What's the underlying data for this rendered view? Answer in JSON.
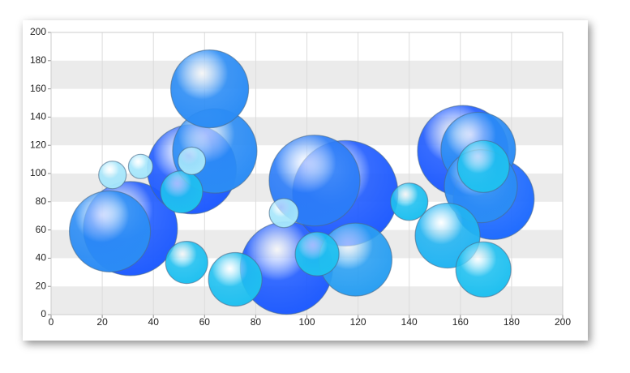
{
  "chart_data": {
    "type": "bubble",
    "xlim": [
      0,
      200
    ],
    "xticks": [
      0,
      20,
      40,
      60,
      80,
      100,
      120,
      140,
      160,
      180,
      200
    ],
    "ylim": [
      0,
      200
    ],
    "yticks": [
      0,
      20,
      40,
      60,
      80,
      100,
      120,
      140,
      160,
      180,
      200
    ],
    "grid": true,
    "series": [
      {
        "x": [
          31,
          23,
          55,
          64,
          62,
          92,
          115,
          103,
          119,
          161,
          173,
          167,
          168,
          155,
          169,
          169,
          51,
          53,
          72,
          104,
          140,
          24,
          35,
          55,
          91
        ],
        "values": [
          61,
          59,
          103,
          116,
          160,
          33,
          86,
          95,
          39,
          116,
          82,
          117,
          91,
          56,
          32,
          105,
          87,
          37,
          25,
          43,
          80,
          99,
          105,
          109,
          72
        ],
        "sizes": [
          58,
          50,
          55,
          52,
          48,
          57,
          65,
          56,
          45,
          56,
          50,
          46,
          45,
          40,
          34,
          32,
          26,
          26,
          33,
          27,
          23,
          17,
          15,
          17,
          18
        ],
        "colors": [
          "#1f5bff",
          "#2b8cf5",
          "#1f5bff",
          "#2b8cf5",
          "#2b8cf5",
          "#1f5bff",
          "#1f5bff",
          "#2b7cf8",
          "#2a9ff2",
          "#1f5bff",
          "#1f6bff",
          "#2b8cf5",
          "#2b8cf5",
          "#22b4f2",
          "#1fc0f0",
          "#1fc0f0",
          "#1fc0f0",
          "#1fc0f0",
          "#1fc0f0",
          "#1fc0f0",
          "#1fc0f0",
          "#a6e6fb",
          "#a6e6fb",
          "#a6e6fb",
          "#a6e6fb"
        ]
      }
    ]
  }
}
